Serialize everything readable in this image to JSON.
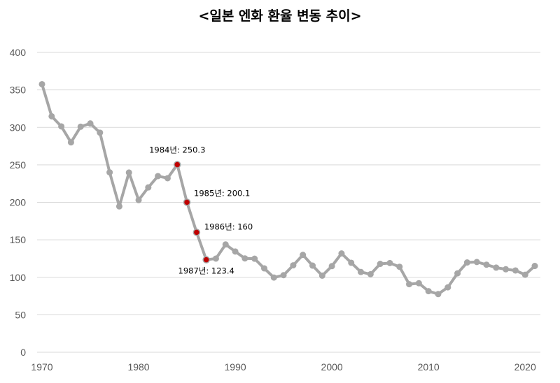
{
  "chart_data": {
    "type": "line",
    "title": "<일본 엔화 환율 변동 추이>",
    "xlabel": "",
    "ylabel": "",
    "xlim": [
      1970,
      2021
    ],
    "ylim": [
      0,
      400
    ],
    "y_ticks": [
      0,
      50,
      100,
      150,
      200,
      250,
      300,
      350,
      400
    ],
    "x_ticks": [
      1970,
      1980,
      1990,
      2000,
      2010,
      2020
    ],
    "grid": "horizontal",
    "colors": {
      "line": "#a6a6a6",
      "marker": "#a6a6a6",
      "highlight": "#c00000",
      "grid": "#d9d9d9"
    },
    "x": [
      1970,
      1971,
      1972,
      1973,
      1974,
      1975,
      1976,
      1977,
      1978,
      1979,
      1980,
      1981,
      1982,
      1983,
      1984,
      1985,
      1986,
      1987,
      1988,
      1989,
      1990,
      1991,
      1992,
      1993,
      1994,
      1995,
      1996,
      1997,
      1998,
      1999,
      2000,
      2001,
      2002,
      2003,
      2004,
      2005,
      2006,
      2007,
      2008,
      2009,
      2010,
      2011,
      2012,
      2013,
      2014,
      2015,
      2016,
      2017,
      2018,
      2019,
      2020,
      2021
    ],
    "values": [
      357.6,
      314.8,
      301.3,
      280.0,
      300.9,
      305.2,
      292.9,
      240.0,
      194.6,
      239.7,
      203.0,
      219.9,
      235.0,
      232.2,
      250.3,
      200.1,
      160,
      123.4,
      125.0,
      143.8,
      134.4,
      125.2,
      124.8,
      111.9,
      99.7,
      102.8,
      116.0,
      129.9,
      115.6,
      102.2,
      114.9,
      131.8,
      119.4,
      107.1,
      104.1,
      117.9,
      119.0,
      114.0,
      90.8,
      92.1,
      81.5,
      77.6,
      86.6,
      105.3,
      119.8,
      120.4,
      116.8,
      112.9,
      110.7,
      109.1,
      103.4,
      115.1
    ],
    "highlights": [
      {
        "x": 1984,
        "y": 250.3,
        "label": "1984년: 250.3"
      },
      {
        "x": 1985,
        "y": 200.1,
        "label": "1985년: 200.1"
      },
      {
        "x": 1986,
        "y": 160,
        "label": "1986년: 160"
      },
      {
        "x": 1987,
        "y": 123.4,
        "label": "1987년: 123.4"
      }
    ]
  }
}
